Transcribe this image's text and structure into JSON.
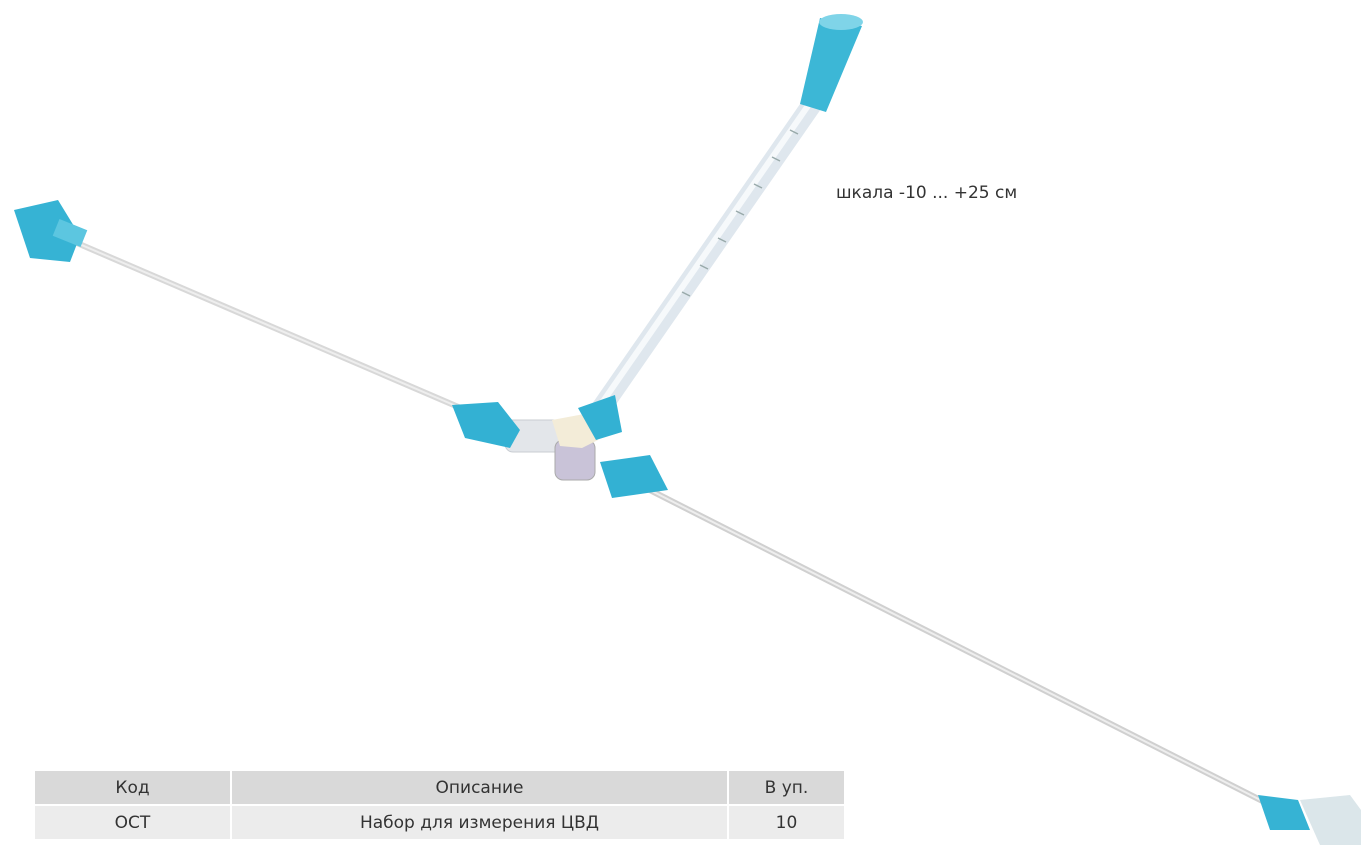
{
  "annotation": "шкала -10 ... +25 см",
  "table": {
    "header": [
      "Код",
      "Описание",
      "В уп."
    ],
    "rows": [
      [
        "ОСТ",
        "Набор для измерения ЦВД",
        "10"
      ]
    ]
  }
}
